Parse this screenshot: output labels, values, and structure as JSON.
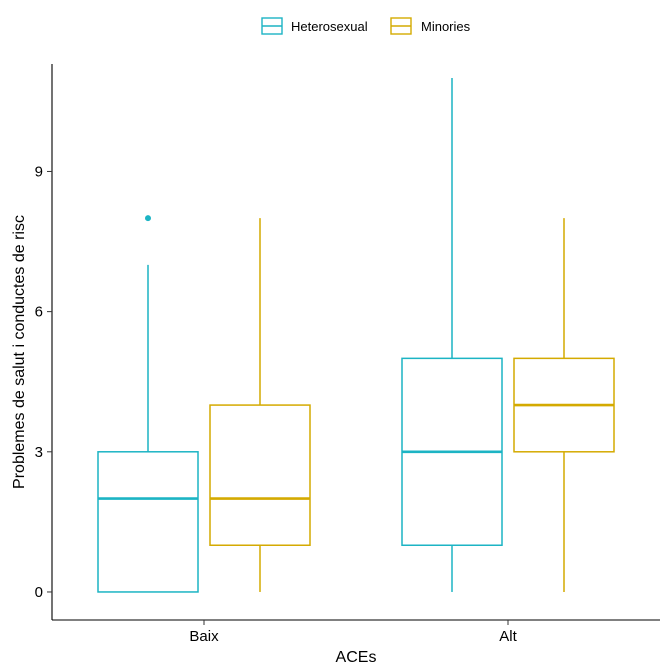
{
  "chart_data": {
    "type": "boxplot",
    "xlabel": "ACEs",
    "ylabel": "Problemes de salut i conductes de risc",
    "categories": [
      "Baix",
      "Alt"
    ],
    "ylim": [
      -0.6,
      11.3
    ],
    "yticks": [
      0,
      3,
      6,
      9
    ],
    "grid": false,
    "legend_position": "top",
    "series": [
      {
        "name": "Heterosexual",
        "color": "#1CB4C4",
        "boxes": [
          {
            "category": "Baix",
            "min": 0,
            "q1": 0,
            "median": 2,
            "q3": 3,
            "max": 7,
            "outliers": [
              8
            ]
          },
          {
            "category": "Alt",
            "min": 0,
            "q1": 1,
            "median": 3,
            "q3": 5,
            "max": 11,
            "outliers": []
          }
        ]
      },
      {
        "name": "Minories",
        "color": "#D4AA00",
        "boxes": [
          {
            "category": "Baix",
            "min": 0,
            "q1": 1,
            "median": 2,
            "q3": 4,
            "max": 8,
            "outliers": []
          },
          {
            "category": "Alt",
            "min": 0,
            "q1": 3,
            "median": 4,
            "q3": 5,
            "max": 8,
            "outliers": []
          }
        ]
      }
    ]
  }
}
